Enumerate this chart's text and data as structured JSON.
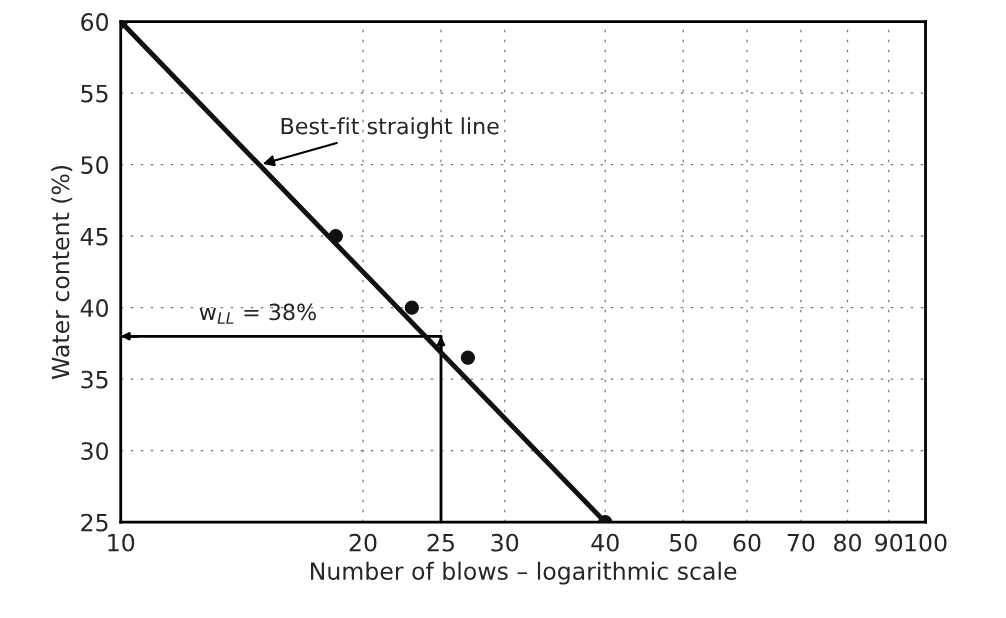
{
  "chart_data": {
    "type": "scatter",
    "xlabel": "Number of blows – logarithmic scale",
    "ylabel": "Water content (%)",
    "log": "x",
    "xlim": [
      10,
      100
    ],
    "ylim": [
      25,
      60
    ],
    "xticks": [
      10,
      20,
      25,
      30,
      40,
      50,
      60,
      70,
      80,
      90,
      100
    ],
    "yticks": [
      25,
      30,
      35,
      40,
      45,
      50,
      55,
      60
    ],
    "grid": true,
    "series": [
      {
        "color": "#111111",
        "marker": "circle",
        "x": [
          10,
          18.5,
          23,
          27,
          40
        ],
        "values": [
          60,
          45,
          40,
          36.5,
          25
        ]
      },
      {
        "type": "line",
        "color": "#111111",
        "line_style": "solid",
        "x": [
          10,
          40
        ],
        "values": [
          60,
          25
        ]
      }
    ],
    "ref_lines": [
      {
        "axis": "x",
        "value": 25
      },
      {
        "axis": "y",
        "value": 38,
        "label": "w$_{LL}$ = 38%"
      }
    ],
    "annotations": [
      {
        "text": "Best-fit straight line",
        "x": 14.9,
        "y": 50
      }
    ]
  }
}
